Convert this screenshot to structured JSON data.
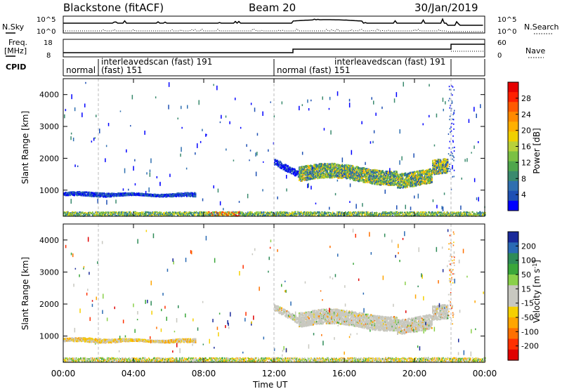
{
  "header": {
    "station": "Blackstone (fitACF)",
    "beam": "Beam 20",
    "date": "30/Jan/2019"
  },
  "left_labels": {
    "nsky": "N.Sky",
    "freq_line1": "Freq.",
    "freq_line2": "[MHz]",
    "cpid": "CPID"
  },
  "right_labels": {
    "nsearch": "N.Search",
    "nave": "Nave"
  },
  "noise_panel": {
    "left_ticks": [
      "10^5",
      "10^0"
    ],
    "right_ticks": [
      "10^5",
      "10^0"
    ]
  },
  "freq_panel": {
    "left_ticks": [
      "18",
      "8"
    ],
    "right_ticks": [
      "60",
      "0"
    ]
  },
  "cpid_panel": {
    "segments": [
      {
        "label": "normal",
        "start_h": 0.0,
        "end_h": 2.0
      },
      {
        "label": "interleavedscan (fast) 191",
        "sublabel": "(fast) 151",
        "start_h": 2.0,
        "end_h": 12.0
      },
      {
        "label": "normal (fast) 151",
        "start_h": 12.0,
        "end_h": 13.4
      },
      {
        "label": "interleavedscan (fast) 191",
        "start_h": 13.4,
        "end_h": 22.0
      }
    ]
  },
  "chart_data": [
    {
      "type": "heatmap",
      "panel": "power",
      "ylabel": "Slant Range [km]",
      "ylim": [
        180,
        4500
      ],
      "yticks": [
        "1000",
        "2000",
        "3000",
        "4000"
      ],
      "xlim": [
        0,
        24
      ],
      "colorbar": {
        "label": "Power [dB]",
        "ticks": [
          "4",
          "8",
          "12",
          "16",
          "20",
          "24",
          "28"
        ],
        "colors": [
          "#0000ff",
          "#1e50b4",
          "#2f6fb0",
          "#3a8a6e",
          "#4fa64c",
          "#7bc043",
          "#b8d13a",
          "#f0d000",
          "#ffb000",
          "#ff8a00",
          "#ff5a00",
          "#ff2000",
          "#e60000"
        ]
      },
      "echo_regions": [
        {
          "name": "near-range ground scatter",
          "start_h": 0.0,
          "end_h": 24.0,
          "range_km": [
            180,
            320
          ]
        },
        {
          "name": "morning band",
          "start_h": 0.0,
          "end_h": 7.5,
          "range_km": [
            800,
            1000
          ]
        },
        {
          "name": "afternoon band",
          "start_h": 12.0,
          "end_h": 21.9,
          "range_km": [
            1000,
            1900
          ]
        }
      ]
    },
    {
      "type": "heatmap",
      "panel": "velocity",
      "ylabel": "Slant Range [km]",
      "ylim": [
        180,
        4500
      ],
      "yticks": [
        "1000",
        "2000",
        "3000",
        "4000"
      ],
      "xlim": [
        0,
        24
      ],
      "colorbar": {
        "label": "Velocity [m s-1]",
        "label_base": "Velocity [m s",
        "label_exp": "-1",
        "label_close": "]",
        "ticks": [
          "200",
          "100",
          "50",
          "15",
          "-15",
          "-50",
          "-100",
          "-200"
        ],
        "colors": [
          "#1a2a9a",
          "#2a6ab4",
          "#2e8b57",
          "#3aa63a",
          "#8ad04a",
          "#c8c8c0",
          "#c8c8c0",
          "#f5d000",
          "#ffa500",
          "#ff7000",
          "#ff3000",
          "#e00000"
        ]
      }
    }
  ],
  "xaxis": {
    "label": "Time UT",
    "ticks": [
      "00:00",
      "04:00",
      "08:00",
      "12:00",
      "16:00",
      "20:00",
      "00:00"
    ]
  }
}
